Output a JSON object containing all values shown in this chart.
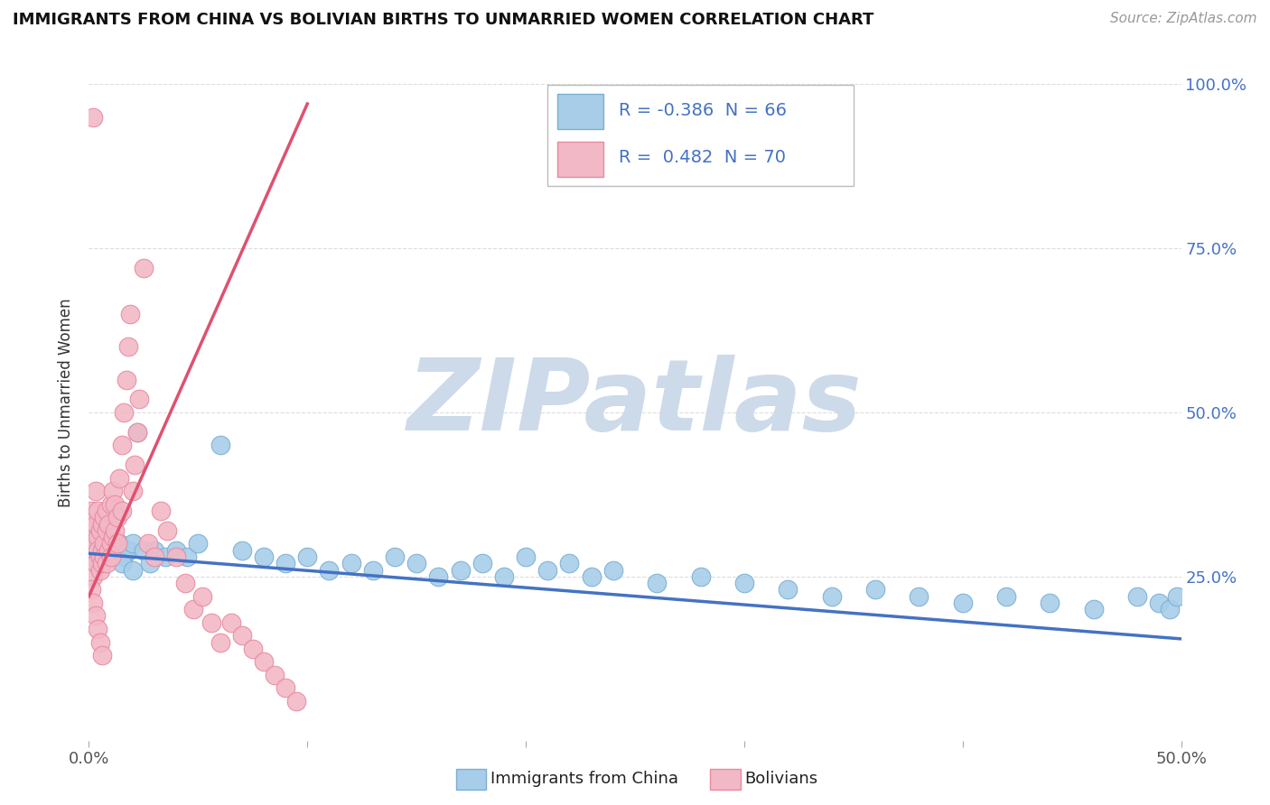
{
  "title": "IMMIGRANTS FROM CHINA VS BOLIVIAN BIRTHS TO UNMARRIED WOMEN CORRELATION CHART",
  "source": "Source: ZipAtlas.com",
  "ylabel": "Births to Unmarried Women",
  "yticklabels": [
    "100.0%",
    "75.0%",
    "50.0%",
    "25.0%"
  ],
  "ytick_positions": [
    1.0,
    0.75,
    0.5,
    0.25
  ],
  "legend_r1_val": "-0.386",
  "legend_n1_val": "66",
  "legend_r2_val": " 0.482",
  "legend_n2_val": "70",
  "color_blue": "#a8cde8",
  "color_pink": "#f2b8c6",
  "color_blue_edge": "#7aafd4",
  "color_pink_edge": "#e88aa0",
  "color_blue_line": "#4472c4",
  "color_pink_line": "#e05070",
  "color_blue_text": "#4472c4",
  "watermark_text": "ZIPatlas",
  "watermark_color": "#ccdaea",
  "blue_scatter_x": [
    0.001,
    0.002,
    0.002,
    0.003,
    0.003,
    0.004,
    0.005,
    0.006,
    0.007,
    0.008,
    0.009,
    0.01,
    0.011,
    0.012,
    0.014,
    0.016,
    0.018,
    0.02,
    0.022,
    0.025,
    0.028,
    0.03,
    0.035,
    0.04,
    0.045,
    0.05,
    0.06,
    0.07,
    0.08,
    0.09,
    0.1,
    0.11,
    0.12,
    0.13,
    0.14,
    0.15,
    0.16,
    0.17,
    0.18,
    0.19,
    0.2,
    0.21,
    0.22,
    0.23,
    0.24,
    0.26,
    0.28,
    0.3,
    0.32,
    0.34,
    0.36,
    0.38,
    0.4,
    0.42,
    0.44,
    0.46,
    0.48,
    0.49,
    0.495,
    0.498,
    0.003,
    0.004,
    0.007,
    0.01,
    0.015,
    0.02
  ],
  "blue_scatter_y": [
    0.3,
    0.32,
    0.29,
    0.31,
    0.28,
    0.3,
    0.29,
    0.31,
    0.3,
    0.28,
    0.29,
    0.3,
    0.28,
    0.29,
    0.3,
    0.28,
    0.29,
    0.3,
    0.47,
    0.29,
    0.27,
    0.29,
    0.28,
    0.29,
    0.28,
    0.3,
    0.45,
    0.29,
    0.28,
    0.27,
    0.28,
    0.26,
    0.27,
    0.26,
    0.28,
    0.27,
    0.25,
    0.26,
    0.27,
    0.25,
    0.28,
    0.26,
    0.27,
    0.25,
    0.26,
    0.24,
    0.25,
    0.24,
    0.23,
    0.22,
    0.23,
    0.22,
    0.21,
    0.22,
    0.21,
    0.2,
    0.22,
    0.21,
    0.2,
    0.22,
    0.29,
    0.3,
    0.31,
    0.28,
    0.27,
    0.26
  ],
  "pink_scatter_x": [
    0.001,
    0.001,
    0.001,
    0.002,
    0.002,
    0.002,
    0.003,
    0.003,
    0.003,
    0.004,
    0.004,
    0.004,
    0.005,
    0.005,
    0.005,
    0.006,
    0.006,
    0.006,
    0.007,
    0.007,
    0.007,
    0.008,
    0.008,
    0.008,
    0.009,
    0.009,
    0.01,
    0.01,
    0.01,
    0.011,
    0.011,
    0.012,
    0.012,
    0.013,
    0.013,
    0.014,
    0.015,
    0.015,
    0.016,
    0.017,
    0.018,
    0.019,
    0.02,
    0.021,
    0.022,
    0.023,
    0.025,
    0.027,
    0.03,
    0.033,
    0.036,
    0.04,
    0.044,
    0.048,
    0.052,
    0.056,
    0.06,
    0.065,
    0.07,
    0.075,
    0.08,
    0.085,
    0.09,
    0.095,
    0.001,
    0.002,
    0.003,
    0.004,
    0.005,
    0.006
  ],
  "pink_scatter_y": [
    0.32,
    0.28,
    0.35,
    0.3,
    0.95,
    0.25,
    0.33,
    0.27,
    0.38,
    0.31,
    0.35,
    0.29,
    0.28,
    0.32,
    0.26,
    0.29,
    0.33,
    0.27,
    0.3,
    0.34,
    0.28,
    0.32,
    0.27,
    0.35,
    0.29,
    0.33,
    0.3,
    0.36,
    0.28,
    0.31,
    0.38,
    0.32,
    0.36,
    0.3,
    0.34,
    0.4,
    0.35,
    0.45,
    0.5,
    0.55,
    0.6,
    0.65,
    0.38,
    0.42,
    0.47,
    0.52,
    0.72,
    0.3,
    0.28,
    0.35,
    0.32,
    0.28,
    0.24,
    0.2,
    0.22,
    0.18,
    0.15,
    0.18,
    0.16,
    0.14,
    0.12,
    0.1,
    0.08,
    0.06,
    0.23,
    0.21,
    0.19,
    0.17,
    0.15,
    0.13
  ],
  "blue_line_x": [
    0.0,
    0.5
  ],
  "blue_line_y": [
    0.285,
    0.155
  ],
  "pink_line_x": [
    0.0,
    0.1
  ],
  "pink_line_y": [
    0.22,
    0.97
  ],
  "xlim": [
    0.0,
    0.5
  ],
  "ylim": [
    0.0,
    1.03
  ]
}
